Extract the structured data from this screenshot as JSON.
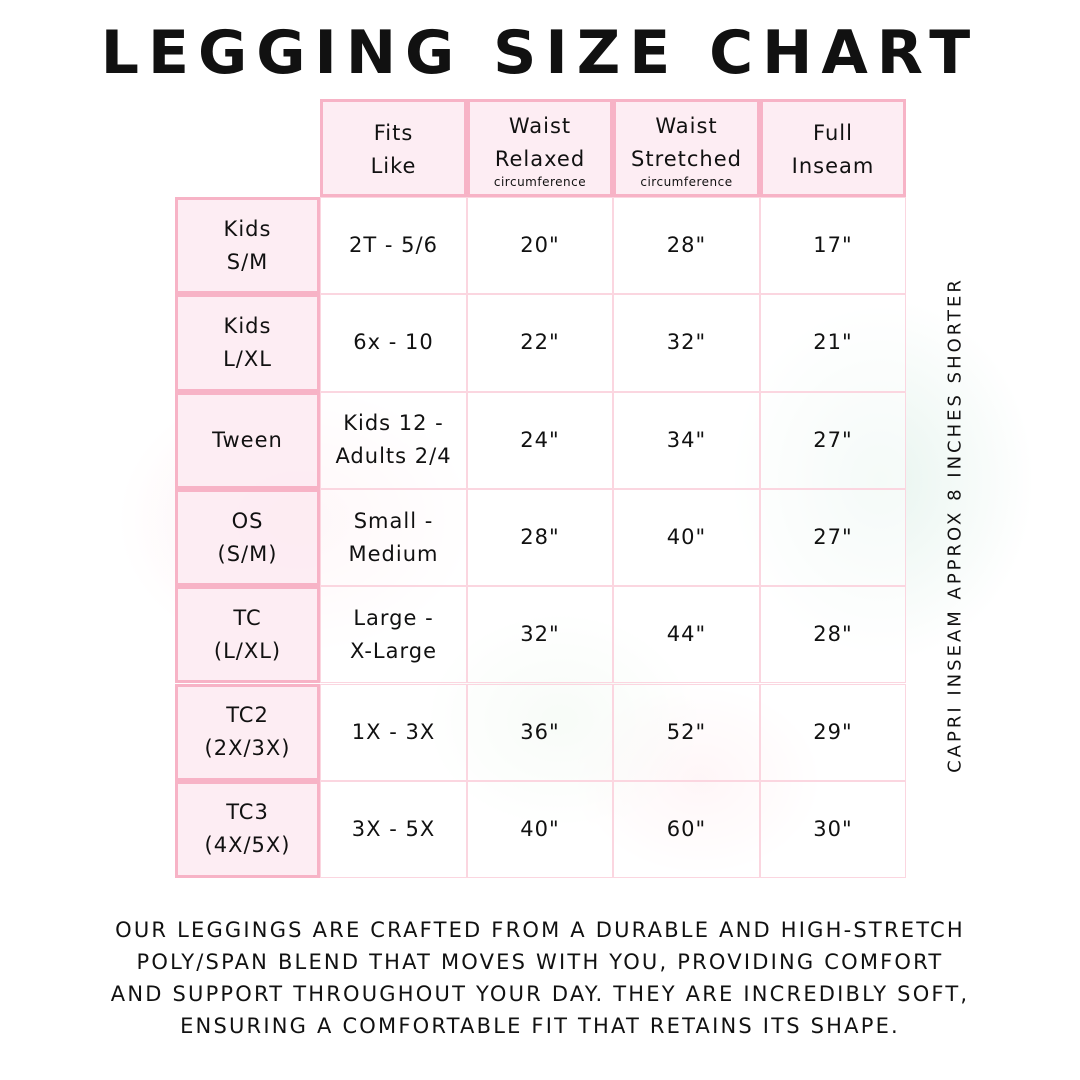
{
  "title": "LEGGING SIZE CHART",
  "columns": [
    {
      "lines": [
        "Fits",
        "Like"
      ],
      "sub": ""
    },
    {
      "lines": [
        "Waist",
        "Relaxed"
      ],
      "sub": "circumference"
    },
    {
      "lines": [
        "Waist",
        "Stretched"
      ],
      "sub": "circumference"
    },
    {
      "lines": [
        "Full",
        "Inseam"
      ],
      "sub": ""
    }
  ],
  "rows": [
    {
      "size": [
        "Kids",
        "S/M"
      ],
      "fits": [
        "2T - 5/6"
      ],
      "relaxed": "20\"",
      "stretched": "28\"",
      "inseam": "17\""
    },
    {
      "size": [
        "Kids",
        "L/XL"
      ],
      "fits": [
        "6x - 10"
      ],
      "relaxed": "22\"",
      "stretched": "32\"",
      "inseam": "21\""
    },
    {
      "size": [
        "Tween"
      ],
      "fits": [
        "Kids 12 -",
        "Adults 2/4"
      ],
      "relaxed": "24\"",
      "stretched": "34\"",
      "inseam": "27\""
    },
    {
      "size": [
        "OS",
        "(S/M)"
      ],
      "fits": [
        "Small -",
        "Medium"
      ],
      "relaxed": "28\"",
      "stretched": "40\"",
      "inseam": "27\""
    },
    {
      "size": [
        "TC",
        "(L/XL)"
      ],
      "fits": [
        "Large -",
        "X-Large"
      ],
      "relaxed": "32\"",
      "stretched": "44\"",
      "inseam": "28\""
    },
    {
      "size": [
        "TC2",
        "(2X/3X)"
      ],
      "fits": [
        "1X - 3X"
      ],
      "relaxed": "36\"",
      "stretched": "52\"",
      "inseam": "29\""
    },
    {
      "size": [
        "TC3",
        "(4X/5X)"
      ],
      "fits": [
        "3X - 5X"
      ],
      "relaxed": "40\"",
      "stretched": "60\"",
      "inseam": "30\""
    }
  ],
  "side_note": "CAPRI INSEAM APPROX 8 INCHES SHORTER",
  "footer": [
    "Our leggings are crafted from a durable and high-stretch",
    "poly/span blend that moves with you, providing comfort",
    "and support throughout your day. They are incredibly soft,",
    "ensuring a comfortable fit that retains its shape."
  ],
  "colors": {
    "border": "#f7b3c6",
    "header_bg": "#fdecf2",
    "body_border": "#fbd6e0"
  }
}
